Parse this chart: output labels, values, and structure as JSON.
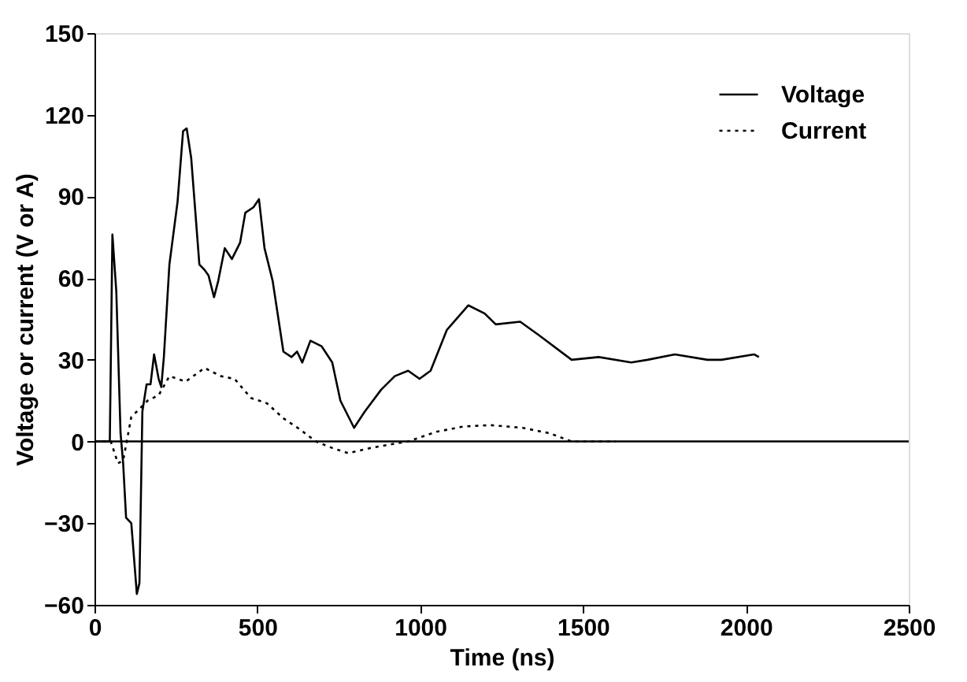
{
  "chart_data": {
    "type": "line",
    "xlabel": "Time (ns)",
    "ylabel": "Voltage or current (V or A)",
    "xlim": [
      0,
      2500
    ],
    "xticks": [
      0,
      500,
      1000,
      1500,
      2000,
      2500
    ],
    "ylim": [
      -60,
      150
    ],
    "yticks": [
      -60,
      -30,
      0,
      30,
      60,
      90,
      120,
      150
    ],
    "grid": false,
    "legend": "top right",
    "marker": "none",
    "ref_lines": [
      {
        "axis": "y",
        "value": 0,
        "color": "#000000",
        "line_style": "solid"
      }
    ],
    "series": [
      {
        "name": "Voltage",
        "color": "#000000",
        "line_style": "solid",
        "x": [
          0,
          47,
          55,
          67,
          80,
          88,
          97,
          113,
          130,
          138,
          147,
          160,
          172,
          183,
          197,
          205,
          213,
          230,
          255,
          272,
          283,
          297,
          322,
          338,
          350,
          367,
          380,
          400,
          422,
          447,
          463,
          488,
          505,
          522,
          547,
          580,
          605,
          622,
          638,
          663,
          697,
          730,
          755,
          797,
          830,
          880,
          922,
          963,
          998,
          1032,
          1082,
          1148,
          1198,
          1232,
          1307,
          1365,
          1465,
          1548,
          1648,
          1698,
          1782,
          1882,
          1925,
          2025,
          2040
        ],
        "values": [
          0,
          0,
          76,
          55,
          3,
          -8,
          -28,
          -30,
          -56,
          -52,
          11,
          21,
          21,
          32,
          23,
          20,
          31,
          65,
          88,
          114,
          115,
          104,
          65,
          63,
          61,
          53,
          59,
          71,
          67,
          73,
          84,
          86,
          89,
          71,
          59,
          33,
          31,
          33,
          29,
          37,
          35,
          29,
          15,
          5,
          11,
          19,
          24,
          26,
          23,
          26,
          41,
          50,
          47,
          43,
          44,
          39,
          30,
          31,
          29,
          30,
          32,
          30,
          30,
          32,
          31
        ]
      },
      {
        "name": "Current",
        "color": "#000000",
        "line_style": "dotted",
        "x": [
          0,
          50,
          72,
          88,
          113,
          130,
          163,
          197,
          230,
          280,
          338,
          388,
          430,
          480,
          530,
          580,
          630,
          680,
          730,
          780,
          847,
          913,
          963,
          1048,
          1132,
          1215,
          1315,
          1398,
          1465,
          1600
        ],
        "values": [
          0,
          0,
          -8,
          -7,
          9,
          11,
          15,
          17,
          24,
          22,
          27,
          24,
          23,
          16,
          14,
          8.5,
          4.5,
          0,
          -2.4,
          -4.3,
          -2.4,
          -1,
          0,
          3.5,
          5.5,
          6,
          5,
          3,
          0,
          0
        ]
      }
    ]
  }
}
